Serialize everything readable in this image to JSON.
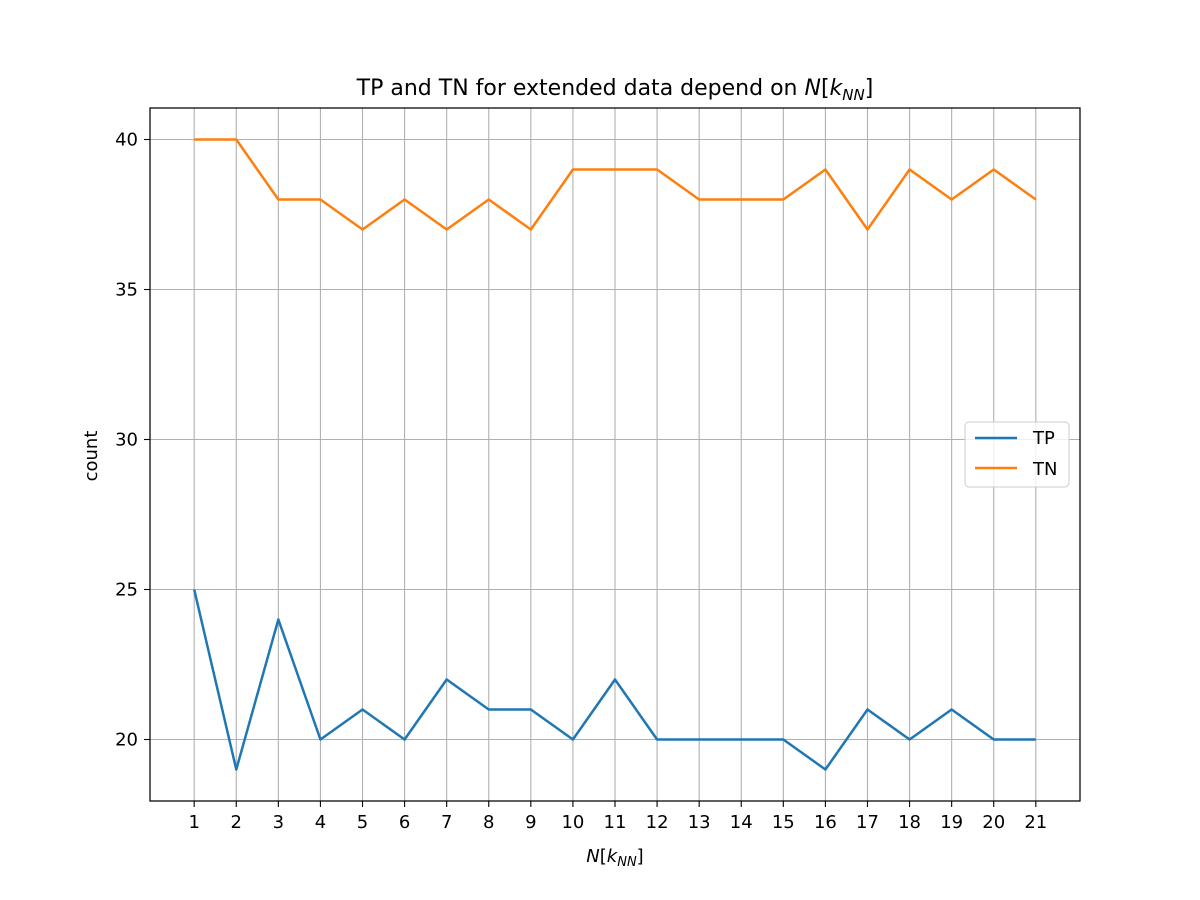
{
  "chart_data": {
    "type": "line",
    "title": {
      "prefix": "TP and TN for extended data depend on ",
      "var": "N",
      "open": "[",
      "sub_base": "k",
      "sub_script": "NN",
      "close": "]"
    },
    "xlabel": {
      "var": "N",
      "open": "[",
      "sub_base": "k",
      "sub_script": "NN",
      "close": "]"
    },
    "ylabel": "count",
    "x": [
      1,
      2,
      3,
      4,
      5,
      6,
      7,
      8,
      9,
      10,
      11,
      12,
      13,
      14,
      15,
      16,
      17,
      18,
      19,
      20,
      21
    ],
    "x_tick_labels": [
      "1",
      "2",
      "3",
      "4",
      "5",
      "6",
      "7",
      "8",
      "9",
      "10",
      "11",
      "12",
      "13",
      "14",
      "15",
      "16",
      "17",
      "18",
      "19",
      "20",
      "21"
    ],
    "y_ticks": [
      20,
      25,
      30,
      35,
      40
    ],
    "y_tick_labels": [
      "20",
      "25",
      "30",
      "35",
      "40"
    ],
    "xlim": [
      -0.05,
      22.05
    ],
    "ylim": [
      17.95,
      41.05
    ],
    "grid": true,
    "legend_position": "center-right",
    "series": [
      {
        "name": "TP",
        "color": "#1f77b4",
        "values": [
          25,
          19,
          24,
          20,
          21,
          20,
          22,
          21,
          21,
          20,
          22,
          20,
          20,
          20,
          20,
          19,
          21,
          20,
          21,
          20,
          20
        ]
      },
      {
        "name": "TN",
        "color": "#ff7f0e",
        "values": [
          40,
          40,
          38,
          38,
          37,
          38,
          37,
          38,
          37,
          39,
          39,
          39,
          38,
          38,
          38,
          39,
          37,
          39,
          38,
          39,
          38
        ]
      }
    ]
  }
}
